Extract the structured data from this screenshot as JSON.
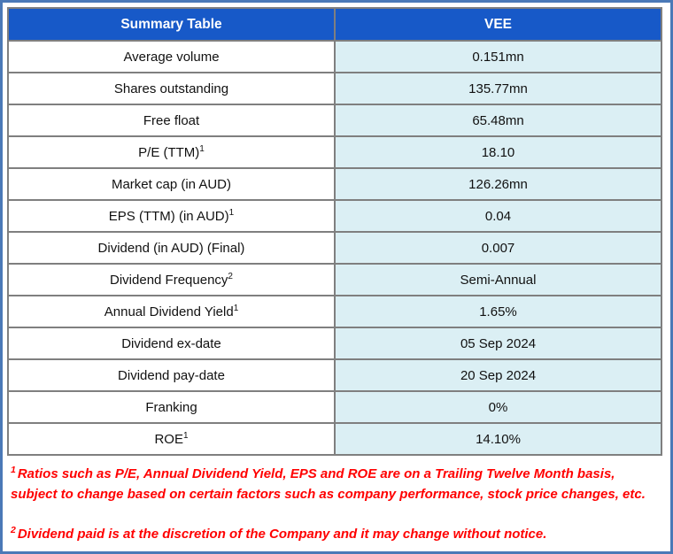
{
  "colors": {
    "header_bg": "#1759C8",
    "value_cell_bg": "#DBEFF4",
    "grid_border": "#7F7F7F",
    "outer_border": "#4B79B7",
    "footnote_color": "#FF0000"
  },
  "table": {
    "header": {
      "left": "Summary Table",
      "right": "VEE"
    },
    "rows": [
      {
        "label": "Average volume",
        "value": "0.151mn"
      },
      {
        "label": "Shares outstanding",
        "value": "135.77mn"
      },
      {
        "label": "Free float",
        "value": "65.48mn"
      },
      {
        "label": "P/E (TTM)",
        "sup": "1",
        "value": "18.10"
      },
      {
        "label": "Market cap (in AUD)",
        "value": "126.26mn"
      },
      {
        "label": "EPS (TTM) (in AUD)",
        "sup": "1",
        "value": "0.04"
      },
      {
        "label": "Dividend (in AUD) (Final)",
        "value": "0.007"
      },
      {
        "label": "Dividend Frequency",
        "sup": "2",
        "value": "Semi-Annual"
      },
      {
        "label": "Annual Dividend Yield",
        "sup": "1",
        "value": "1.65%"
      },
      {
        "label": "Dividend ex-date",
        "value": "05 Sep 2024"
      },
      {
        "label": "Dividend pay-date",
        "value": "20 Sep 2024"
      },
      {
        "label": "Franking",
        "value": "0%"
      },
      {
        "label": "ROE",
        "sup": "1",
        "value": "14.10%"
      }
    ]
  },
  "footnotes": [
    {
      "sup": "1",
      "text": "Ratios such as P/E, Annual Dividend Yield, EPS and ROE are on a Trailing Twelve Month basis, subject to change based on certain factors such as company performance, stock price changes, etc."
    },
    {
      "sup": "2",
      "text": "Dividend paid is at the discretion of the Company and it may change without notice."
    }
  ]
}
